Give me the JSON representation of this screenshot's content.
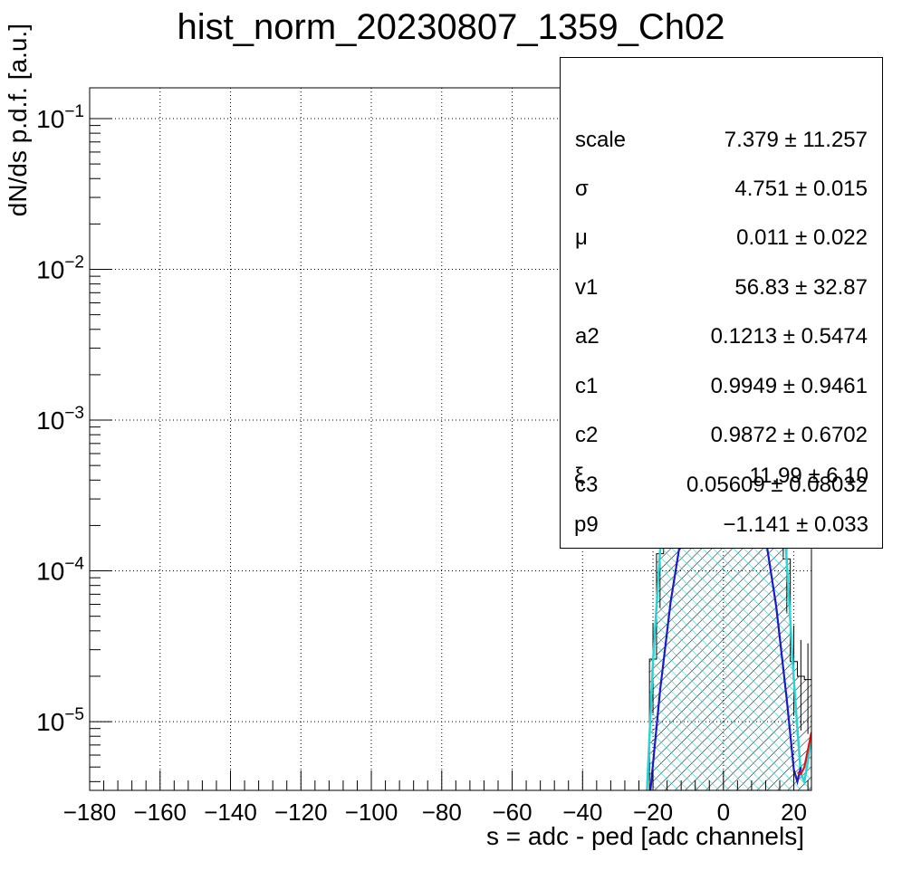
{
  "chart_data": {
    "type": "line",
    "title": "hist_norm_20230807_1359_Ch02",
    "xlabel": "s = adc - ped [adc channels]",
    "ylabel": "dN/ds p.d.f. [a.u.]",
    "xlim": [
      -180,
      25
    ],
    "ylim": [
      3.5e-06,
      0.16
    ],
    "y_scale": "log",
    "grid": true,
    "x_ticks": [
      -180,
      -160,
      -140,
      -120,
      -100,
      -80,
      -60,
      -40,
      -20,
      0,
      20
    ],
    "y_ticks": [
      {
        "value": 1e-05,
        "exp": "−5"
      },
      {
        "value": 0.0001,
        "exp": "−4"
      },
      {
        "value": 0.001,
        "exp": "−3"
      },
      {
        "value": 0.01,
        "exp": "−2"
      },
      {
        "value": 0.1,
        "exp": "−1"
      }
    ],
    "series": [
      {
        "name": "",
        "style": "histogram-hatched",
        "color": "#000000",
        "x": [
          -22,
          -20,
          -18,
          -16,
          -14,
          -12,
          -10,
          -8,
          -6,
          -4,
          -2,
          0,
          2,
          4,
          6,
          8,
          10,
          12,
          14,
          16,
          18,
          20,
          22,
          24
        ],
        "y": [
          1.5e-06,
          2.6e-05,
          0.00013,
          0.00062,
          0.0022,
          0.0065,
          0.0155,
          0.031,
          0.052,
          0.071,
          0.082,
          0.085,
          0.081,
          0.069,
          0.05,
          0.03,
          0.0148,
          0.0062,
          0.0021,
          0.0006,
          0.00012,
          2.5e-05,
          2e-05,
          1.9e-05
        ]
      },
      {
        "name": "",
        "style": "filled-hatched",
        "color": "#29d4d4",
        "x": [
          -22,
          -20,
          -18,
          -16,
          -14,
          -12,
          -10,
          -8,
          -6,
          -4,
          -2,
          0,
          2,
          4,
          6,
          8,
          10,
          12,
          14,
          16,
          18,
          20,
          21,
          22,
          23,
          24,
          25
        ],
        "y": [
          2.5e-06,
          2.5e-05,
          0.000135,
          0.00064,
          0.0023,
          0.0066,
          0.0158,
          0.0315,
          0.052,
          0.07,
          0.081,
          0.0835,
          0.079,
          0.067,
          0.049,
          0.0295,
          0.0145,
          0.006,
          0.002,
          0.00056,
          0.000115,
          1.9e-05,
          9e-06,
          4.5e-06,
          4e-06,
          5.5e-06,
          8e-06
        ]
      },
      {
        "name": "",
        "style": "line",
        "color": "#1a1acc",
        "x": [
          -21,
          -18,
          -15,
          -12,
          -9,
          -6,
          -3,
          0,
          1,
          3,
          6,
          9,
          12,
          15,
          18,
          20,
          21,
          22
        ],
        "y": [
          3e-06,
          1.6e-05,
          6.2e-05,
          0.00017,
          0.00036,
          0.00056,
          0.00071,
          0.00076,
          0.00076,
          0.0007,
          0.00055,
          0.00035,
          0.000165,
          5.8e-05,
          1.4e-05,
          4.8e-06,
          4e-06,
          5e-06
        ]
      },
      {
        "name": "",
        "style": "line",
        "color": "#e01414",
        "x": [
          21,
          22,
          23,
          24,
          25
        ],
        "y": [
          4.6e-06,
          4.5e-06,
          5e-06,
          6.5e-06,
          8.5e-06
        ]
      }
    ],
    "stats_box": [
      {
        "name": "scale",
        "value": "7.379 ± 11.257"
      },
      {
        "name": "σ",
        "value": "4.751 ± 0.015"
      },
      {
        "name": "μ",
        "value": "0.011 ± 0.022"
      },
      {
        "name": "v1",
        "value": "56.83 ± 32.87"
      },
      {
        "name": "a2",
        "value": "0.1213 ± 0.5474"
      },
      {
        "name": "c1",
        "value": "0.9949 ± 0.9461"
      },
      {
        "name": "c2",
        "value": "0.9872 ± 0.6702"
      },
      {
        "name": "c3",
        "value": "0.05609 ± 0.08032"
      },
      {
        "name": "ξ",
        "value": "11.99 ± 6.10"
      },
      {
        "name": "p9",
        "value": "−1.141 ± 0.033"
      }
    ]
  }
}
